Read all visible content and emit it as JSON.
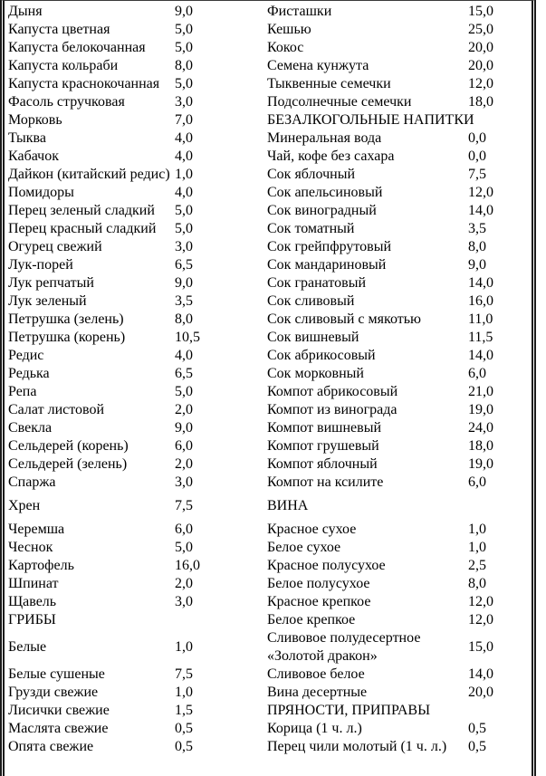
{
  "colors": {
    "text": "#000000",
    "border": "#1a1a1a",
    "background": "#ffffff"
  },
  "table": {
    "rows": [
      {
        "left": {
          "name": "Дыня",
          "value": "9,0"
        },
        "right": {
          "name": "Фисташки",
          "value": "15,0"
        }
      },
      {
        "left": {
          "name": "Капуста цветная",
          "value": "5,0"
        },
        "right": {
          "name": "Кешью",
          "value": "25,0"
        }
      },
      {
        "left": {
          "name": "Капуста белокочанная",
          "value": "5,0"
        },
        "right": {
          "name": "Кокос",
          "value": "20,0"
        }
      },
      {
        "left": {
          "name": "Капуста кольраби",
          "value": "8,0"
        },
        "right": {
          "name": "Семена кунжута",
          "value": "20,0"
        }
      },
      {
        "left": {
          "name": "Капуста краснокочанная",
          "value": "5,0"
        },
        "right": {
          "name": "Тыквенные семечки",
          "value": "12,0"
        }
      },
      {
        "left": {
          "name": "Фасоль стручковая",
          "value": "3,0"
        },
        "right": {
          "name": "Подсолнечные семечки",
          "value": "18,0"
        }
      },
      {
        "left": {
          "name": "Морковь",
          "value": "7,0"
        },
        "right": {
          "name": "БЕЗАЛКОГОЛЬНЫЕ НАПИТКИ",
          "header": true
        }
      },
      {
        "left": {
          "name": "Тыква",
          "value": "4,0"
        },
        "right": {
          "name": "Минеральная вода",
          "value": "0,0"
        }
      },
      {
        "left": {
          "name": "Кабачок",
          "value": "4,0"
        },
        "right": {
          "name": "Чай, кофе без сахара",
          "value": "0,0"
        }
      },
      {
        "left": {
          "name": "Дайкон (китайский редис)",
          "value": "1,0",
          "justify": true
        },
        "right": {
          "name": "Сок яблочный",
          "value": "7,5"
        }
      },
      {
        "left": {
          "name": "Помидоры",
          "value": "4,0"
        },
        "right": {
          "name": "Сок апельсиновый",
          "value": "12,0"
        }
      },
      {
        "left": {
          "name": "Перец зеленый сладкий",
          "value": "5,0"
        },
        "right": {
          "name": "Сок виноградный",
          "value": "14,0"
        }
      },
      {
        "left": {
          "name": "Перец красный сладкий",
          "value": "5,0"
        },
        "right": {
          "name": "Сок томатный",
          "value": "3,5"
        }
      },
      {
        "left": {
          "name": "Огурец свежий",
          "value": "3,0"
        },
        "right": {
          "name": "Сок грейпфрутовый",
          "value": "8,0"
        }
      },
      {
        "left": {
          "name": "Лук-порей",
          "value": "6,5"
        },
        "right": {
          "name": "Сок мандариновый",
          "value": "9,0"
        }
      },
      {
        "left": {
          "name": "Лук репчатый",
          "value": "9,0"
        },
        "right": {
          "name": "Сок гранатовый",
          "value": "14,0"
        }
      },
      {
        "left": {
          "name": "Лук зеленый",
          "value": "3,5"
        },
        "right": {
          "name": "Сок сливовый",
          "value": "16,0"
        }
      },
      {
        "left": {
          "name": "Петрушка (зелень)",
          "value": "8,0"
        },
        "right": {
          "name": "Сок сливовый с мякотью",
          "value": "11,0"
        }
      },
      {
        "left": {
          "name": "Петрушка (корень)",
          "value": "10,5"
        },
        "right": {
          "name": "Сок вишневый",
          "value": "11,5"
        }
      },
      {
        "left": {
          "name": "Редис",
          "value": "4,0"
        },
        "right": {
          "name": "Сок абрикосовый",
          "value": "14,0"
        }
      },
      {
        "left": {
          "name": "Редька",
          "value": "6,5"
        },
        "right": {
          "name": "Сок морковный",
          "value": "6,0"
        }
      },
      {
        "left": {
          "name": "Репа",
          "value": "5,0"
        },
        "right": {
          "name": "Компот абрикосовый",
          "value": "21,0"
        }
      },
      {
        "left": {
          "name": "Салат листовой",
          "value": "2,0"
        },
        "right": {
          "name": "Компот из винограда",
          "value": "19,0"
        }
      },
      {
        "left": {
          "name": "Свекла",
          "value": "9,0"
        },
        "right": {
          "name": "Компот вишневый",
          "value": "24,0"
        }
      },
      {
        "left": {
          "name": "Сельдерей (корень)",
          "value": "6,0"
        },
        "right": {
          "name": "Компот грушевый",
          "value": "18,0"
        }
      },
      {
        "left": {
          "name": "Сельдерей (зелень)",
          "value": "2,0"
        },
        "right": {
          "name": "Компот яблочный",
          "value": "19,0"
        }
      },
      {
        "left": {
          "name": "Спаржа",
          "value": "3,0"
        },
        "right": {
          "name": "Компот на ксилите",
          "value": "6,0"
        }
      },
      {
        "left": {
          "name": "Хрен",
          "value": "7,5"
        },
        "right": {
          "name": "ВИНА",
          "header": true
        },
        "tall": true
      },
      {
        "left": {
          "name": "Черемша",
          "value": "6,0"
        },
        "right": {
          "name": "Красное сухое",
          "value": "1,0"
        }
      },
      {
        "left": {
          "name": "Чеснок",
          "value": "5,0"
        },
        "right": {
          "name": "Белое сухое",
          "value": "1,0"
        }
      },
      {
        "left": {
          "name": "Картофель",
          "value": "16,0"
        },
        "right": {
          "name": "Красное полусухое",
          "value": "2,5"
        }
      },
      {
        "left": {
          "name": "Шпинат",
          "value": "2,0"
        },
        "right": {
          "name": "Белое полусухое",
          "value": "8,0"
        }
      },
      {
        "left": {
          "name": "Щавель",
          "value": "3,0"
        },
        "right": {
          "name": "Красное крепкое",
          "value": "12,0"
        }
      },
      {
        "left": {
          "name": "ГРИБЫ",
          "header": true
        },
        "right": {
          "name": "Белое крепкое",
          "value": "12,0"
        }
      },
      {
        "left": {
          "name": "Белые",
          "value": "1,0"
        },
        "right": {
          "name": "Сливовое полудесертное «Золотой дракон»",
          "value": "15,0"
        }
      },
      {
        "left": {
          "name": "Белые сушеные",
          "value": "7,5"
        },
        "right": {
          "name": "Сливовое белое",
          "value": "14,0"
        }
      },
      {
        "left": {
          "name": "Грузди свежие",
          "value": "1,0"
        },
        "right": {
          "name": "Вина десертные",
          "value": "20,0"
        }
      },
      {
        "left": {
          "name": "Лисички свежие",
          "value": "1,5"
        },
        "right": {
          "name": "ПРЯНОСТИ, ПРИПРАВЫ",
          "header": true
        }
      },
      {
        "left": {
          "name": "Маслята свежие",
          "value": "0,5"
        },
        "right": {
          "name": "Корица (1 ч. л.)",
          "value": "0,5"
        }
      },
      {
        "left": {
          "name": "Опята свежие",
          "value": "0,5"
        },
        "right": {
          "name": "Перец чили молотый (1 ч. л.)",
          "value": "0,5"
        }
      }
    ]
  }
}
